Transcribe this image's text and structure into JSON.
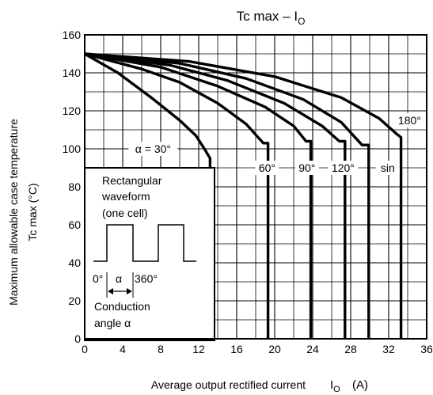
{
  "chart_data": {
    "type": "line",
    "title": "Tc max – I",
    "title_sub": "O",
    "xlabel": "Average output rectified current",
    "xlabel_symbol": "I",
    "xlabel_symbol_sub": "O",
    "xlabel_unit": "(A)",
    "ylabel_line1": "Maximum allowable case temperature",
    "ylabel_line2": "Tc max    (°C)",
    "xlim": [
      0,
      36
    ],
    "ylim": [
      0,
      160
    ],
    "x_ticks": [
      0,
      4,
      8,
      12,
      16,
      20,
      24,
      28,
      32,
      36
    ],
    "y_ticks": [
      0,
      20,
      40,
      60,
      80,
      100,
      120,
      140,
      160
    ],
    "x_tick_labels": [
      "0",
      "4",
      "8",
      "12",
      "16",
      "20",
      "24",
      "28",
      "32",
      "36"
    ],
    "y_tick_labels": [
      "0",
      "20",
      "40",
      "60",
      "80",
      "100",
      "120",
      "140",
      "160"
    ],
    "grid": true,
    "series": [
      {
        "name": "α = 30°",
        "label_at": [
          7.2,
          100
        ],
        "points": [
          [
            0,
            150
          ],
          [
            3.5,
            140
          ],
          [
            7,
            127
          ],
          [
            10,
            115
          ],
          [
            11.7,
            107
          ],
          [
            12.6,
            100
          ],
          [
            13.2,
            95
          ],
          [
            13.2,
            0
          ]
        ]
      },
      {
        "name": "60°",
        "label_at": [
          19.2,
          90
        ],
        "points": [
          [
            0,
            150
          ],
          [
            6,
            142
          ],
          [
            10,
            135
          ],
          [
            14,
            124
          ],
          [
            17,
            113
          ],
          [
            18.8,
            103
          ],
          [
            19.3,
            103
          ],
          [
            19.3,
            0
          ]
        ]
      },
      {
        "name": "90°",
        "label_at": [
          23.4,
          90
        ],
        "points": [
          [
            0,
            150
          ],
          [
            8,
            143
          ],
          [
            14,
            133
          ],
          [
            19,
            122
          ],
          [
            22,
            112
          ],
          [
            23.3,
            104
          ],
          [
            23.8,
            104
          ],
          [
            23.8,
            0
          ]
        ]
      },
      {
        "name": "120°",
        "label_at": [
          27.2,
          90
        ],
        "points": [
          [
            0,
            150
          ],
          [
            9,
            144
          ],
          [
            15,
            136
          ],
          [
            21,
            124
          ],
          [
            25,
            112
          ],
          [
            26.8,
            104
          ],
          [
            27.4,
            104
          ],
          [
            27.4,
            0
          ]
        ]
      },
      {
        "name": "sin",
        "label_at": [
          31.9,
          90
        ],
        "points": [
          [
            0,
            150
          ],
          [
            10,
            145
          ],
          [
            17,
            137
          ],
          [
            23,
            126
          ],
          [
            27,
            114
          ],
          [
            29.2,
            102
          ],
          [
            29.9,
            102
          ],
          [
            29.9,
            0
          ]
        ]
      },
      {
        "name": "180°",
        "label_at": [
          34.2,
          115
        ],
        "points": [
          [
            0,
            150
          ],
          [
            11,
            146
          ],
          [
            20,
            138
          ],
          [
            27,
            127
          ],
          [
            31,
            116
          ],
          [
            32.8,
            108
          ],
          [
            33.3,
            106
          ],
          [
            33.3,
            0
          ]
        ]
      }
    ],
    "inset": {
      "line1": "Rectangular",
      "line2": "waveform",
      "line3": "(one cell)",
      "label_zero": "0°",
      "label_alpha": "α",
      "label_360": "360°",
      "line4": "Conduction",
      "line5": "angle α"
    }
  }
}
